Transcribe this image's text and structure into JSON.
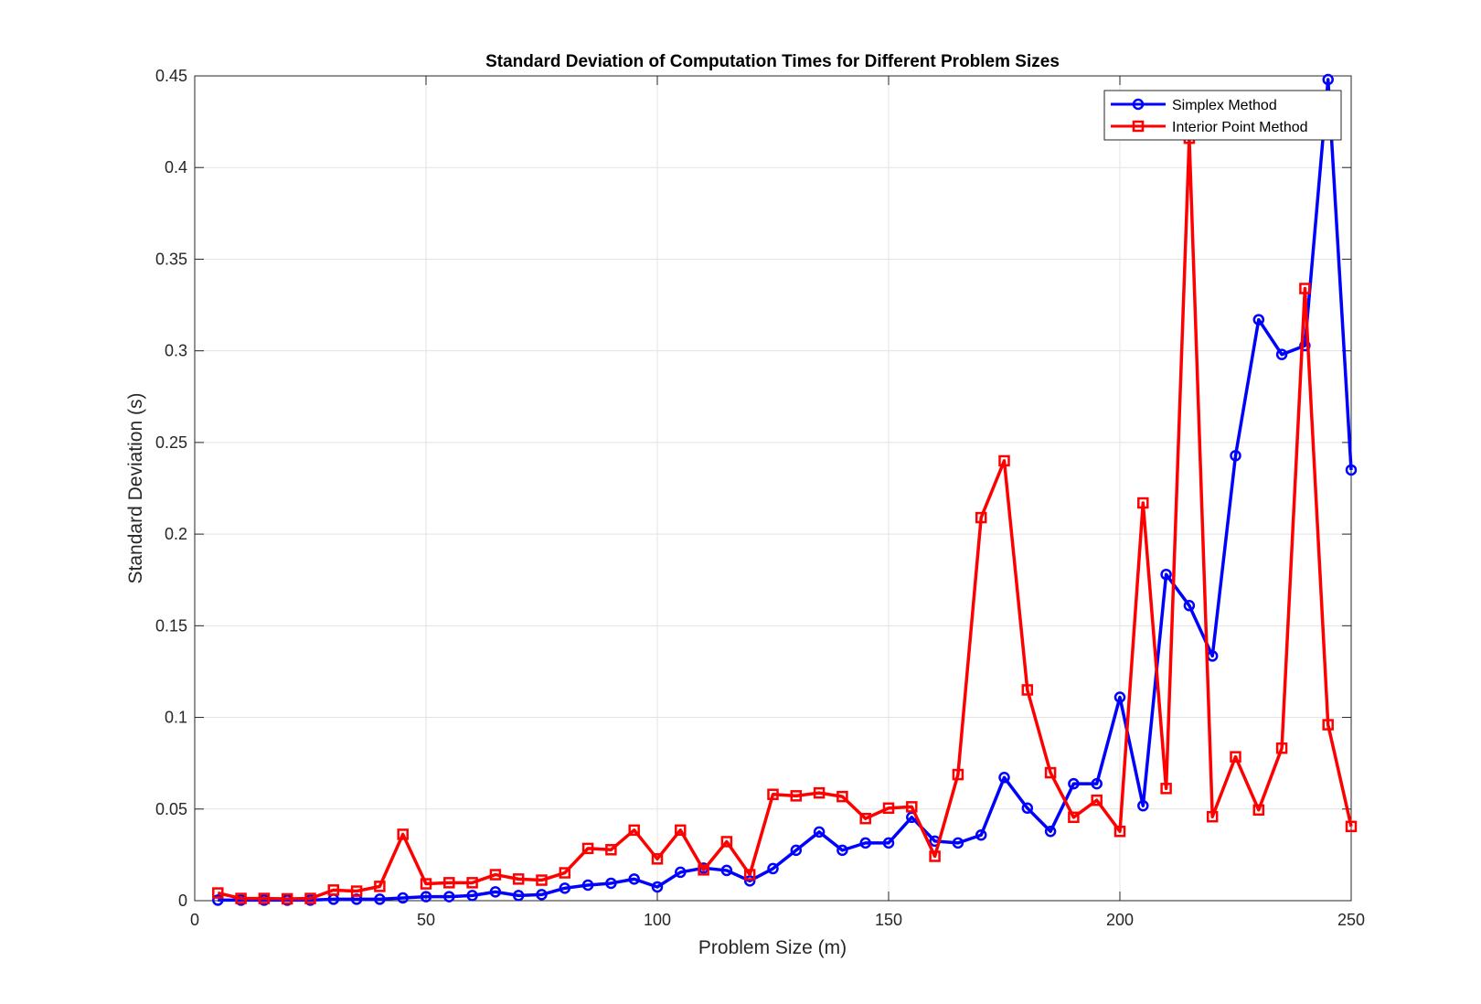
{
  "chart_data": {
    "type": "line",
    "title": "Standard Deviation of Computation Times for Different Problem Sizes",
    "xlabel": "Problem Size (m)",
    "ylabel": "Standard Deviation (s)",
    "xlim": [
      0,
      250
    ],
    "ylim": [
      0,
      0.45
    ],
    "xticks": [
      0,
      50,
      100,
      150,
      200,
      250
    ],
    "xtick_labels": [
      "0",
      "50",
      "100",
      "150",
      "200",
      "250"
    ],
    "yticks": [
      0,
      0.05,
      0.1,
      0.15,
      0.2,
      0.25,
      0.3,
      0.35,
      0.4,
      0.45
    ],
    "ytick_labels": [
      "0",
      "0.05",
      "0.1",
      "0.15",
      "0.2",
      "0.25",
      "0.3",
      "0.35",
      "0.4",
      "0.45"
    ],
    "grid": true,
    "legend_position": "top-right",
    "x": [
      5,
      10,
      15,
      20,
      25,
      30,
      35,
      40,
      45,
      50,
      55,
      60,
      65,
      70,
      75,
      80,
      85,
      90,
      95,
      100,
      105,
      110,
      115,
      120,
      125,
      130,
      135,
      140,
      145,
      150,
      155,
      160,
      165,
      170,
      175,
      180,
      185,
      190,
      195,
      200,
      205,
      210,
      215,
      220,
      225,
      230,
      235,
      240,
      245,
      250
    ],
    "series": [
      {
        "name": "Simplex Method",
        "color": "#0000ff",
        "marker": "circle",
        "values": [
          0.0003,
          0.0003,
          0.0003,
          0.0003,
          0.0003,
          0.0008,
          0.0008,
          0.0008,
          0.0015,
          0.0022,
          0.0022,
          0.0028,
          0.0048,
          0.0028,
          0.0033,
          0.0068,
          0.0085,
          0.0095,
          0.0118,
          0.0075,
          0.0155,
          0.0178,
          0.0165,
          0.0108,
          0.0175,
          0.0275,
          0.0375,
          0.0275,
          0.0315,
          0.0315,
          0.0455,
          0.0325,
          0.0315,
          0.0358,
          0.0672,
          0.0505,
          0.0378,
          0.0638,
          0.0638,
          0.111,
          0.0518,
          0.178,
          0.161,
          0.1335,
          0.2428,
          0.317,
          0.298,
          0.3028,
          0.448,
          0.235
        ]
      },
      {
        "name": "Interior Point Method",
        "color": "#ff0000",
        "marker": "square",
        "values": [
          0.0042,
          0.0012,
          0.0012,
          0.001,
          0.0012,
          0.0058,
          0.0052,
          0.0078,
          0.0362,
          0.0092,
          0.0098,
          0.0098,
          0.0142,
          0.0118,
          0.0112,
          0.0152,
          0.0285,
          0.0278,
          0.0385,
          0.0228,
          0.0385,
          0.0168,
          0.0322,
          0.0142,
          0.058,
          0.0572,
          0.0588,
          0.0568,
          0.0448,
          0.0505,
          0.0512,
          0.0242,
          0.0688,
          0.209,
          0.24,
          0.115,
          0.0698,
          0.0455,
          0.0548,
          0.0378,
          0.217,
          0.0612,
          0.416,
          0.0458,
          0.0785,
          0.0495,
          0.0832,
          0.334,
          0.096,
          0.0405
        ]
      }
    ]
  }
}
